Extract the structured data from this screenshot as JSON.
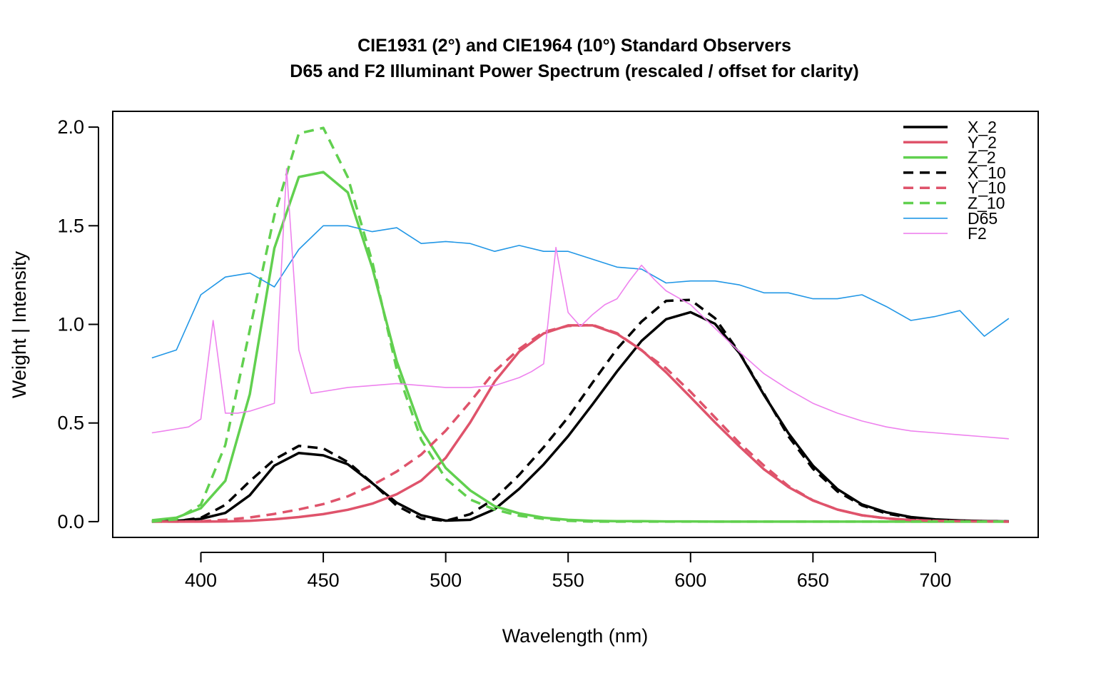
{
  "chart_data": {
    "type": "line",
    "title": "CIE1931 (2°) and CIE1964 (10°) Standard Observers",
    "subtitle": "D65 and F2 Illuminant Power Spectrum (rescaled / offset for clarity)",
    "xlabel": "Wavelength (nm)",
    "ylabel": "Weight | Intensity",
    "xlim": [
      364,
      742
    ],
    "ylim": [
      -0.08,
      2.08
    ],
    "x_ticks": [
      400,
      450,
      500,
      550,
      600,
      650,
      700
    ],
    "x_tick_labels": [
      "400",
      "450",
      "500",
      "550",
      "600",
      "650",
      "700"
    ],
    "y_ticks": [
      0.0,
      0.5,
      1.0,
      1.5,
      2.0
    ],
    "y_tick_labels": [
      "0.0",
      "0.5",
      "1.0",
      "1.5",
      "2.0"
    ],
    "grid": false,
    "legend_position": "top-right",
    "series": [
      {
        "name": "X_2",
        "color": "#000000",
        "dash": "solid",
        "width": "thick",
        "x": [
          380,
          390,
          400,
          410,
          420,
          430,
          440,
          450,
          460,
          470,
          480,
          490,
          500,
          510,
          520,
          530,
          540,
          550,
          560,
          570,
          580,
          590,
          600,
          610,
          620,
          630,
          640,
          650,
          660,
          670,
          680,
          690,
          700,
          710,
          720,
          730
        ],
        "y": [
          0.001,
          0.004,
          0.014,
          0.044,
          0.134,
          0.284,
          0.348,
          0.336,
          0.291,
          0.195,
          0.096,
          0.032,
          0.005,
          0.009,
          0.063,
          0.166,
          0.29,
          0.433,
          0.595,
          0.762,
          0.916,
          1.026,
          1.062,
          1.003,
          0.854,
          0.642,
          0.448,
          0.284,
          0.165,
          0.087,
          0.047,
          0.023,
          0.011,
          0.006,
          0.003,
          0.001
        ]
      },
      {
        "name": "Y_2",
        "color": "#DF536B",
        "dash": "solid",
        "width": "thick",
        "x": [
          380,
          390,
          400,
          410,
          420,
          430,
          440,
          450,
          460,
          470,
          480,
          490,
          500,
          510,
          520,
          530,
          540,
          550,
          560,
          570,
          580,
          590,
          600,
          610,
          620,
          630,
          640,
          650,
          660,
          670,
          680,
          690,
          700,
          710,
          720,
          730
        ],
        "y": [
          0.0,
          0.0,
          0.0,
          0.001,
          0.004,
          0.012,
          0.023,
          0.038,
          0.06,
          0.091,
          0.139,
          0.208,
          0.323,
          0.503,
          0.71,
          0.862,
          0.954,
          0.995,
          0.995,
          0.952,
          0.87,
          0.757,
          0.631,
          0.503,
          0.381,
          0.265,
          0.175,
          0.107,
          0.061,
          0.032,
          0.017,
          0.008,
          0.004,
          0.002,
          0.001,
          0.0
        ]
      },
      {
        "name": "Z_2",
        "color": "#61D04F",
        "dash": "solid",
        "width": "thick",
        "x": [
          380,
          390,
          400,
          410,
          420,
          430,
          440,
          450,
          460,
          470,
          480,
          490,
          500,
          510,
          520,
          530,
          540,
          550,
          560,
          570,
          580,
          590,
          600,
          610,
          620,
          630,
          640,
          650,
          660,
          670,
          680,
          690,
          700,
          710,
          720,
          730
        ],
        "y": [
          0.007,
          0.02,
          0.068,
          0.207,
          0.646,
          1.386,
          1.747,
          1.772,
          1.669,
          1.288,
          0.813,
          0.465,
          0.272,
          0.158,
          0.078,
          0.042,
          0.02,
          0.009,
          0.004,
          0.002,
          0.002,
          0.001,
          0.001,
          0.0,
          0.0,
          0.0,
          0.0,
          0.0,
          0.0,
          0.0,
          0.0,
          0.0,
          0.0,
          0.0,
          0.0,
          0.0
        ]
      },
      {
        "name": "X_10",
        "color": "#000000",
        "dash": "dashed",
        "width": "thick",
        "x": [
          380,
          390,
          400,
          410,
          420,
          430,
          440,
          450,
          460,
          470,
          480,
          490,
          500,
          510,
          520,
          530,
          540,
          550,
          560,
          570,
          580,
          590,
          600,
          610,
          620,
          630,
          640,
          650,
          660,
          670,
          680,
          690,
          700,
          710,
          720,
          730
        ],
        "y": [
          0.0,
          0.003,
          0.019,
          0.085,
          0.205,
          0.315,
          0.384,
          0.371,
          0.302,
          0.196,
          0.081,
          0.016,
          0.004,
          0.038,
          0.117,
          0.237,
          0.377,
          0.529,
          0.705,
          0.876,
          1.014,
          1.119,
          1.124,
          1.031,
          0.856,
          0.648,
          0.432,
          0.268,
          0.153,
          0.082,
          0.041,
          0.02,
          0.009,
          0.004,
          0.002,
          0.001
        ]
      },
      {
        "name": "Y_10",
        "color": "#DF536B",
        "dash": "dashed",
        "width": "thick",
        "x": [
          380,
          390,
          400,
          410,
          420,
          430,
          440,
          450,
          460,
          470,
          480,
          490,
          500,
          510,
          520,
          530,
          540,
          550,
          560,
          570,
          580,
          590,
          600,
          610,
          620,
          630,
          640,
          650,
          660,
          670,
          680,
          690,
          700,
          710,
          720,
          730
        ],
        "y": [
          0.0,
          0.0,
          0.002,
          0.009,
          0.021,
          0.039,
          0.062,
          0.089,
          0.128,
          0.185,
          0.254,
          0.34,
          0.461,
          0.607,
          0.762,
          0.875,
          0.962,
          0.992,
          0.997,
          0.955,
          0.868,
          0.777,
          0.658,
          0.528,
          0.398,
          0.284,
          0.18,
          0.108,
          0.061,
          0.032,
          0.016,
          0.008,
          0.004,
          0.002,
          0.001,
          0.0
        ]
      },
      {
        "name": "Z_10",
        "color": "#61D04F",
        "dash": "dashed",
        "width": "thick",
        "x": [
          380,
          390,
          400,
          410,
          420,
          430,
          440,
          450,
          460,
          470,
          480,
          490,
          500,
          510,
          520,
          530,
          540,
          550,
          560,
          570,
          580,
          590,
          600,
          610,
          620,
          630,
          640,
          650,
          660,
          670,
          680,
          690,
          700,
          710,
          720,
          730
        ],
        "y": [
          0.0,
          0.012,
          0.086,
          0.389,
          0.972,
          1.553,
          1.968,
          1.996,
          1.746,
          1.318,
          0.772,
          0.416,
          0.218,
          0.112,
          0.061,
          0.03,
          0.014,
          0.004,
          0.0,
          0.0,
          0.0,
          0.0,
          0.0,
          0.0,
          0.0,
          0.0,
          0.0,
          0.0,
          0.0,
          0.0,
          0.0,
          0.0,
          0.0,
          0.0,
          0.0,
          0.0
        ]
      },
      {
        "name": "D65",
        "color": "#2297E6",
        "dash": "solid",
        "width": "thin",
        "x": [
          380,
          390,
          400,
          410,
          420,
          430,
          440,
          450,
          460,
          470,
          480,
          490,
          500,
          510,
          520,
          530,
          540,
          550,
          560,
          570,
          580,
          590,
          600,
          610,
          620,
          630,
          640,
          650,
          660,
          670,
          680,
          690,
          700,
          710,
          720,
          730
        ],
        "y": [
          0.83,
          0.87,
          1.15,
          1.24,
          1.26,
          1.19,
          1.38,
          1.5,
          1.5,
          1.47,
          1.49,
          1.41,
          1.42,
          1.41,
          1.37,
          1.4,
          1.37,
          1.37,
          1.33,
          1.29,
          1.28,
          1.21,
          1.22,
          1.22,
          1.2,
          1.16,
          1.16,
          1.13,
          1.13,
          1.15,
          1.09,
          1.02,
          1.04,
          1.07,
          0.94,
          1.03
        ]
      },
      {
        "name": "F2",
        "color": "#EE82EE",
        "dash": "solid",
        "width": "thin",
        "x": [
          380,
          385,
          390,
          395,
          400,
          405,
          410,
          415,
          420,
          425,
          430,
          435,
          440,
          445,
          450,
          460,
          470,
          480,
          490,
          500,
          510,
          520,
          530,
          535,
          540,
          545,
          550,
          555,
          560,
          565,
          570,
          575,
          580,
          585,
          590,
          600,
          610,
          620,
          630,
          640,
          650,
          660,
          670,
          680,
          690,
          700,
          710,
          720,
          730
        ],
        "y": [
          0.45,
          0.46,
          0.47,
          0.48,
          0.52,
          1.02,
          0.55,
          0.55,
          0.56,
          0.58,
          0.6,
          1.79,
          0.87,
          0.65,
          0.66,
          0.68,
          0.69,
          0.7,
          0.69,
          0.68,
          0.68,
          0.69,
          0.73,
          0.76,
          0.8,
          1.39,
          1.06,
          0.99,
          1.05,
          1.1,
          1.13,
          1.22,
          1.3,
          1.23,
          1.17,
          1.1,
          0.98,
          0.86,
          0.75,
          0.67,
          0.6,
          0.55,
          0.51,
          0.48,
          0.46,
          0.45,
          0.44,
          0.43,
          0.42
        ]
      }
    ]
  }
}
